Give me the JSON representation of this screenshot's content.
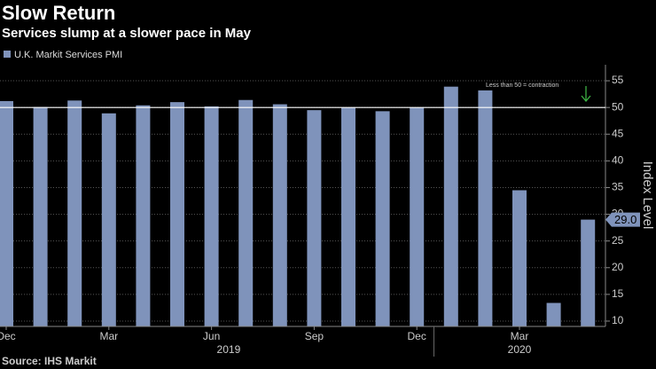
{
  "chart_data": {
    "type": "bar",
    "title": "Slow Return",
    "subtitle": "Services slump at a slower pace in May",
    "source": "Source: IHS Markit",
    "y_axis_label": "Index Level",
    "categories": [
      "Dec",
      null,
      null,
      "Mar",
      null,
      null,
      "Jun",
      null,
      null,
      "Sep",
      null,
      null,
      "Dec",
      null,
      null,
      "Mar",
      null,
      null
    ],
    "years": [
      "2019",
      "2020"
    ],
    "series": [
      {
        "name": "U.K. Markit Services PMI",
        "color": "#7f93bb",
        "values": [
          51.2,
          50.1,
          51.3,
          48.9,
          50.4,
          51.0,
          50.2,
          51.4,
          50.6,
          49.5,
          50.0,
          49.3,
          50.0,
          53.9,
          53.2,
          34.5,
          13.4,
          29.0
        ],
        "value_labels": [
          null,
          null,
          null,
          null,
          null,
          null,
          null,
          null,
          null,
          null,
          null,
          null,
          null,
          null,
          null,
          null,
          null,
          "29.0"
        ]
      }
    ],
    "reference_line": {
      "value": 50,
      "label": "Less than 50 = contraction"
    },
    "ylim": [
      9,
      58
    ],
    "yticks": [
      10,
      15,
      20,
      25,
      30,
      35,
      40,
      45,
      50,
      55
    ],
    "grid": true
  }
}
